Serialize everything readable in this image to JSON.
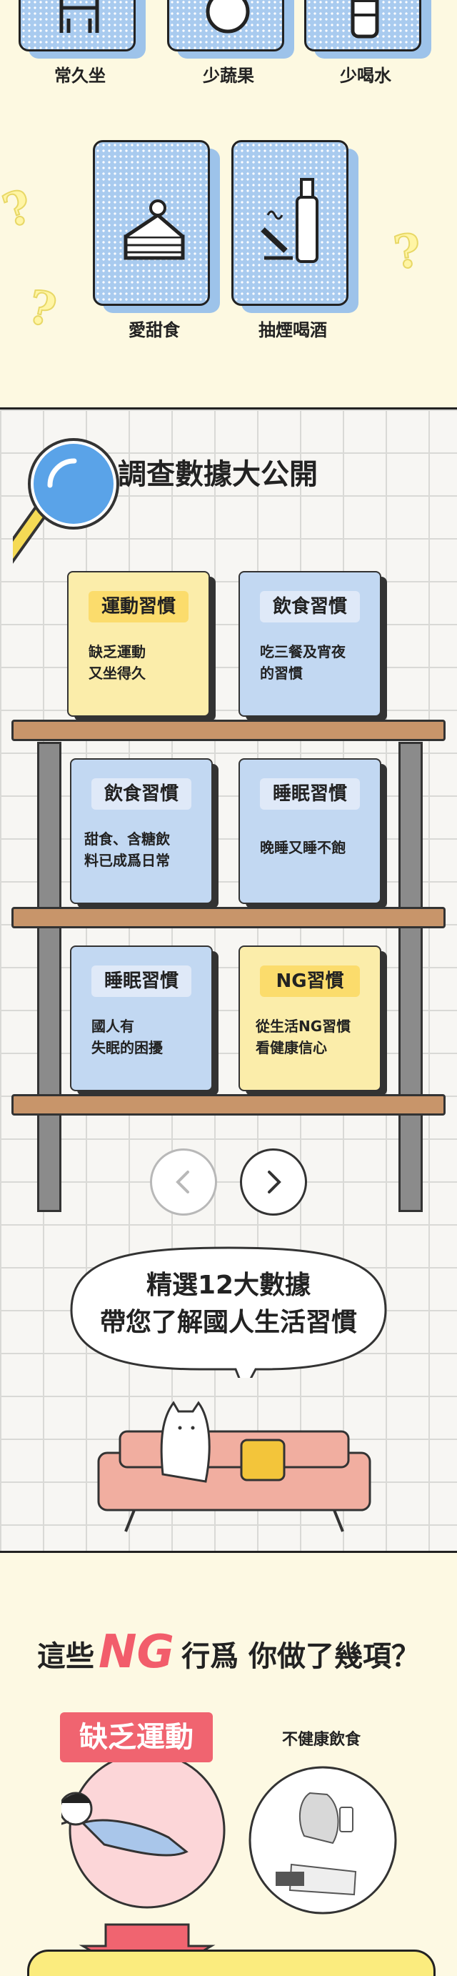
{
  "habits": {
    "items": [
      {
        "label": "常久坐",
        "icon": "chair-icon"
      },
      {
        "label": "少蔬果",
        "icon": "fruit-icon"
      },
      {
        "label": "少喝水",
        "icon": "water-bottle-icon"
      },
      {
        "label": "愛甜食",
        "icon": "cake-icon"
      },
      {
        "label": "抽煙喝酒",
        "icon": "cigarette-wine-icon"
      }
    ]
  },
  "survey": {
    "title": "調查數據大公開",
    "books": [
      {
        "tag": "運動習慣",
        "line1": "缺乏運動",
        "line2": "又坐得久",
        "color": "yellow"
      },
      {
        "tag": "飲食習慣",
        "line1": "吃三餐及宵夜",
        "line2": "的習慣",
        "color": "blue"
      },
      {
        "tag": "飲食習慣",
        "line1": "甜食、含糖飲",
        "line2": "料已成爲日常",
        "color": "blue"
      },
      {
        "tag": "睡眠習慣",
        "line1": "晚睡又睡不飽",
        "line2": "",
        "color": "blue"
      },
      {
        "tag": "睡眠習慣",
        "line1": "國人有",
        "line2": "失眠的困擾",
        "color": "blue"
      },
      {
        "tag": "NG習慣",
        "line1": "從生活NG習慣",
        "line2": "看健康信心",
        "color": "yellow"
      }
    ],
    "bubble_line1": "精選12大數據",
    "bubble_line2": "帶您了解國人生活習慣"
  },
  "ng_section": {
    "title_before": "這些",
    "title_ng": "NG",
    "title_after": "行爲 你做了幾項？",
    "tag_primary": "缺乏運動",
    "tag_secondary": "不健康飲食"
  },
  "colors": {
    "card_blue": "#a9cbef",
    "book_blue": "#c2d8f2",
    "book_yellow": "#fbedaa",
    "ng_red": "#f25d6b"
  }
}
